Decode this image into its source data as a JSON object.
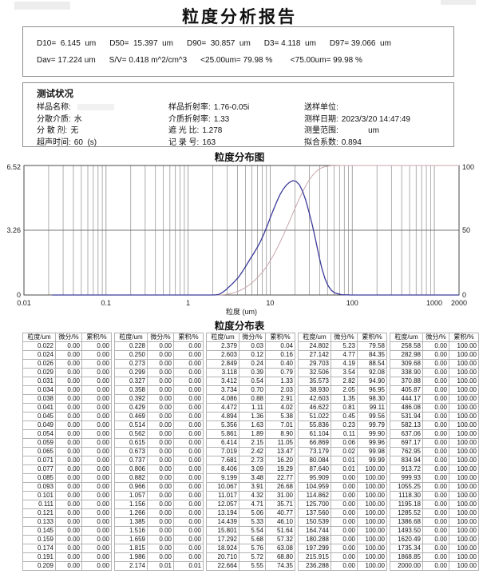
{
  "title": "粒度分析报告",
  "summary": {
    "line1": [
      "D10=  6.145  um",
      "D50=  15.397  um",
      "D90=  30.857  um",
      "D3= 4.118  um",
      "D97= 39.066  um"
    ],
    "line2": [
      "Dav= 17.224 um",
      "S/V= 0.418 m^2/cm^3",
      "<25.00um= 79.98 %",
      "  <75.00um= 99.98 %"
    ]
  },
  "test_status": {
    "title": "测试状况",
    "rows": [
      [
        {
          "label": "样品名称:",
          "value": "",
          "smudge": true
        },
        {
          "label": "样品折射率:",
          "value": "1.76-0.05i"
        },
        {
          "label": "送样单位:",
          "value": ""
        }
      ],
      [
        {
          "label": "分散介质:",
          "value": "水"
        },
        {
          "label": "介质折射率:",
          "value": "1.33"
        },
        {
          "label": "测样日期:",
          "value": "2023/3/20 14:47:49"
        }
      ],
      [
        {
          "label": "分 散 剂:",
          "value": "无"
        },
        {
          "label": "遮 光 比:",
          "value": "1.278"
        },
        {
          "label": "测量范围:",
          "value": "            um"
        }
      ],
      [
        {
          "label": "超声时间:",
          "value": "60  (s)"
        },
        {
          "label": "记 录 号:",
          "value": "163"
        },
        {
          "label": "拟合系数:",
          "value": "0.894"
        }
      ]
    ]
  },
  "chart_data": {
    "type": "line",
    "title": "粒度分布图",
    "xlabel": "粒度 (um)",
    "log_x": true,
    "x_range": [
      0.01,
      2000
    ],
    "x_ticks": [
      "0.01",
      "0.1",
      "1",
      "10",
      "100",
      "1000",
      "2000"
    ],
    "y_left": {
      "label": "微分/%",
      "ticks": [
        "0",
        "3.26",
        "6.52"
      ],
      "max": 6.52
    },
    "y_right": {
      "label": "累积/%",
      "ticks": [
        "0",
        "50",
        "100"
      ],
      "max": 100
    },
    "grid": "log minor verticals 2-9 per decade, horizontal line at 50%",
    "series": [
      {
        "name": "微分/%",
        "color": "#3a3a99",
        "axis": "left"
      },
      {
        "name": "累积/%",
        "color": "#c9a6ab",
        "axis": "right"
      }
    ],
    "bins": [
      [
        "0.022",
        "0.00",
        "0.00"
      ],
      [
        "0.024",
        "0.00",
        "0.00"
      ],
      [
        "0.026",
        "0.00",
        "0.00"
      ],
      [
        "0.029",
        "0.00",
        "0.00"
      ],
      [
        "0.031",
        "0.00",
        "0.00"
      ],
      [
        "0.034",
        "0.00",
        "0.00"
      ],
      [
        "0.038",
        "0.00",
        "0.00"
      ],
      [
        "0.041",
        "0.00",
        "0.00"
      ],
      [
        "0.045",
        "0.00",
        "0.00"
      ],
      [
        "0.049",
        "0.00",
        "0.00"
      ],
      [
        "0.054",
        "0.00",
        "0.00"
      ],
      [
        "0.059",
        "0.00",
        "0.00"
      ],
      [
        "0.065",
        "0.00",
        "0.00"
      ],
      [
        "0.071",
        "0.00",
        "0.00"
      ],
      [
        "0.077",
        "0.00",
        "0.00"
      ],
      [
        "0.085",
        "0.00",
        "0.00"
      ],
      [
        "0.093",
        "0.00",
        "0.00"
      ],
      [
        "0.101",
        "0.00",
        "0.00"
      ],
      [
        "0.111",
        "0.00",
        "0.00"
      ],
      [
        "0.121",
        "0.00",
        "0.00"
      ],
      [
        "0.133",
        "0.00",
        "0.00"
      ],
      [
        "0.145",
        "0.00",
        "0.00"
      ],
      [
        "0.159",
        "0.00",
        "0.00"
      ],
      [
        "0.174",
        "0.00",
        "0.00"
      ],
      [
        "0.191",
        "0.00",
        "0.00"
      ],
      [
        "0.209",
        "0.00",
        "0.00"
      ],
      [
        "0.228",
        "0.00",
        "0.00"
      ],
      [
        "0.250",
        "0.00",
        "0.00"
      ],
      [
        "0.273",
        "0.00",
        "0.00"
      ],
      [
        "0.299",
        "0.00",
        "0.00"
      ],
      [
        "0.327",
        "0.00",
        "0.00"
      ],
      [
        "0.358",
        "0.00",
        "0.00"
      ],
      [
        "0.392",
        "0.00",
        "0.00"
      ],
      [
        "0.429",
        "0.00",
        "0.00"
      ],
      [
        "0.469",
        "0.00",
        "0.00"
      ],
      [
        "0.514",
        "0.00",
        "0.00"
      ],
      [
        "0.562",
        "0.00",
        "0.00"
      ],
      [
        "0.615",
        "0.00",
        "0.00"
      ],
      [
        "0.673",
        "0.00",
        "0.00"
      ],
      [
        "0.737",
        "0.00",
        "0.00"
      ],
      [
        "0.806",
        "0.00",
        "0.00"
      ],
      [
        "0.882",
        "0.00",
        "0.00"
      ],
      [
        "0.966",
        "0.00",
        "0.00"
      ],
      [
        "1.057",
        "0.00",
        "0.00"
      ],
      [
        "1.156",
        "0.00",
        "0.00"
      ],
      [
        "1.266",
        "0.00",
        "0.00"
      ],
      [
        "1.385",
        "0.00",
        "0.00"
      ],
      [
        "1.516",
        "0.00",
        "0.00"
      ],
      [
        "1.659",
        "0.00",
        "0.00"
      ],
      [
        "1.815",
        "0.00",
        "0.00"
      ],
      [
        "1.986",
        "0.00",
        "0.00"
      ],
      [
        "2.174",
        "0.01",
        "0.01"
      ],
      [
        "2.379",
        "0.03",
        "0.04"
      ],
      [
        "2.603",
        "0.12",
        "0.16"
      ],
      [
        "2.849",
        "0.24",
        "0.40"
      ],
      [
        "3.118",
        "0.39",
        "0.79"
      ],
      [
        "3.412",
        "0.54",
        "1.33"
      ],
      [
        "3.734",
        "0.70",
        "2.03"
      ],
      [
        "4.086",
        "0.88",
        "2.91"
      ],
      [
        "4.472",
        "1.11",
        "4.02"
      ],
      [
        "4.894",
        "1.36",
        "5.38"
      ],
      [
        "5.356",
        "1.63",
        "7.01"
      ],
      [
        "5.861",
        "1.89",
        "8.90"
      ],
      [
        "6.414",
        "2.15",
        "11.05"
      ],
      [
        "7.019",
        "2.42",
        "13.47"
      ],
      [
        "7.681",
        "2.73",
        "16.20"
      ],
      [
        "8.406",
        "3.09",
        "19.29"
      ],
      [
        "9.199",
        "3.48",
        "22.77"
      ],
      [
        "10.067",
        "3.91",
        "26.68"
      ],
      [
        "11.017",
        "4.32",
        "31.00"
      ],
      [
        "12.057",
        "4.71",
        "35.71"
      ],
      [
        "13.194",
        "5.06",
        "40.77"
      ],
      [
        "14.439",
        "5.33",
        "46.10"
      ],
      [
        "15.801",
        "5.54",
        "51.64"
      ],
      [
        "17.292",
        "5.68",
        "57.32"
      ],
      [
        "18.924",
        "5.76",
        "63.08"
      ],
      [
        "20.710",
        "5.72",
        "68.80"
      ],
      [
        "22.664",
        "5.55",
        "74.35"
      ],
      [
        "24.802",
        "5.23",
        "79.58"
      ],
      [
        "27.142",
        "4.77",
        "84.35"
      ],
      [
        "29.703",
        "4.19",
        "88.54"
      ],
      [
        "32.506",
        "3.54",
        "92.08"
      ],
      [
        "35.573",
        "2.82",
        "94.90"
      ],
      [
        "38.930",
        "2.05",
        "96.95"
      ],
      [
        "42.603",
        "1.35",
        "98.30"
      ],
      [
        "46.622",
        "0.81",
        "99.11"
      ],
      [
        "51.022",
        "0.45",
        "99.56"
      ],
      [
        "55.836",
        "0.23",
        "99.79"
      ],
      [
        "61.104",
        "0.11",
        "99.90"
      ],
      [
        "66.869",
        "0.06",
        "99.96"
      ],
      [
        "73.179",
        "0.02",
        "99.98"
      ],
      [
        "80.084",
        "0.01",
        "99.99"
      ],
      [
        "87.640",
        "0.01",
        "100.00"
      ],
      [
        "95.909",
        "0.00",
        "100.00"
      ],
      [
        "104.959",
        "0.00",
        "100.00"
      ],
      [
        "114.862",
        "0.00",
        "100.00"
      ],
      [
        "125.700",
        "0.00",
        "100.00"
      ],
      [
        "137.560",
        "0.00",
        "100.00"
      ],
      [
        "150.539",
        "0.00",
        "100.00"
      ],
      [
        "164.744",
        "0.00",
        "100.00"
      ],
      [
        "180.288",
        "0.00",
        "100.00"
      ],
      [
        "197.299",
        "0.00",
        "100.00"
      ],
      [
        "215.915",
        "0.00",
        "100.00"
      ],
      [
        "236.288",
        "0.00",
        "100.00"
      ],
      [
        "258.58",
        "0.00",
        "100.00"
      ],
      [
        "282.98",
        "0.00",
        "100.00"
      ],
      [
        "309.68",
        "0.00",
        "100.00"
      ],
      [
        "338.90",
        "0.00",
        "100.00"
      ],
      [
        "370.88",
        "0.00",
        "100.00"
      ],
      [
        "405.87",
        "0.00",
        "100.00"
      ],
      [
        "444.17",
        "0.00",
        "100.00"
      ],
      [
        "486.08",
        "0.00",
        "100.00"
      ],
      [
        "531.94",
        "0.00",
        "100.00"
      ],
      [
        "582.13",
        "0.00",
        "100.00"
      ],
      [
        "637.06",
        "0.00",
        "100.00"
      ],
      [
        "697.17",
        "0.00",
        "100.00"
      ],
      [
        "762.95",
        "0.00",
        "100.00"
      ],
      [
        "834.94",
        "0.00",
        "100.00"
      ],
      [
        "913.72",
        "0.00",
        "100.00"
      ],
      [
        "999.93",
        "0.00",
        "100.00"
      ],
      [
        "1055.25",
        "0.00",
        "100.00"
      ],
      [
        "1118.30",
        "0.00",
        "100.00"
      ],
      [
        "1195.18",
        "0.00",
        "100.00"
      ],
      [
        "1285.52",
        "0.00",
        "100.00"
      ],
      [
        "1386.68",
        "0.00",
        "100.00"
      ],
      [
        "1493.50",
        "0.00",
        "100.00"
      ],
      [
        "1620.49",
        "0.00",
        "100.00"
      ],
      [
        "1735.34",
        "0.00",
        "100.00"
      ],
      [
        "1868.85",
        "0.00",
        "100.00"
      ],
      [
        "2000.00",
        "0.00",
        "100.00"
      ]
    ]
  },
  "table": {
    "title": "粒度分布表",
    "headers": [
      "粒度/um",
      "微分/%",
      "累积/%"
    ],
    "groups": 5,
    "rows_per_group": 26
  }
}
